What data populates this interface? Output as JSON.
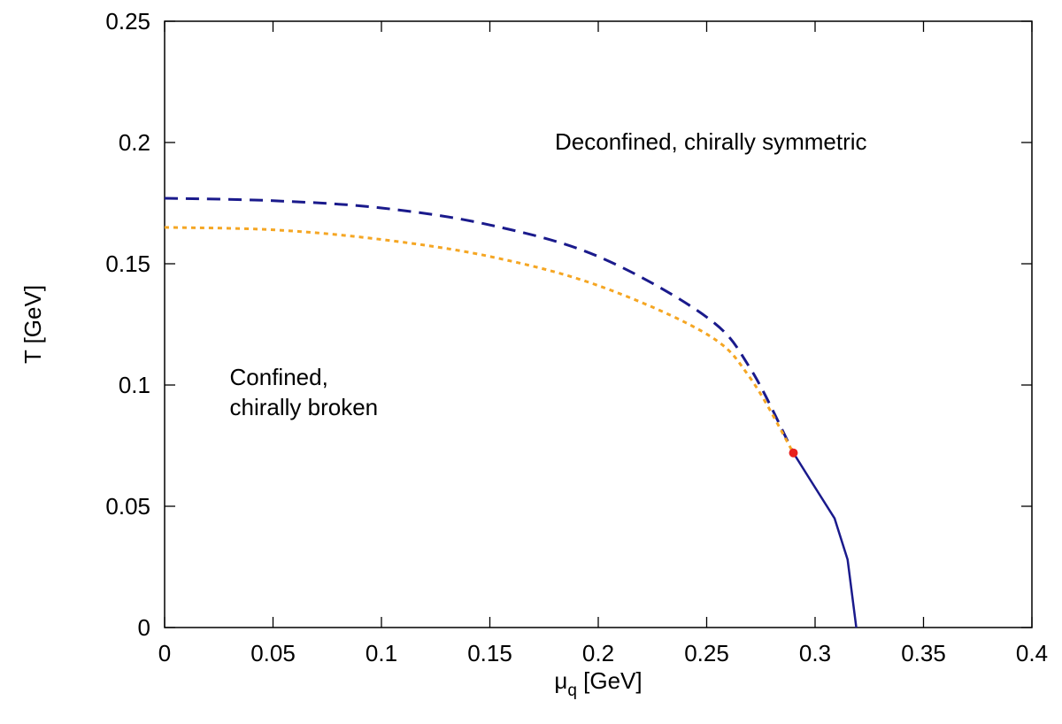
{
  "chart_data": {
    "type": "line",
    "xlabel_symbol": "μ",
    "xlabel_subscript": "q",
    "xlabel_unit": " [GeV]",
    "ylabel": "T [GeV]",
    "xlim": [
      0,
      0.4
    ],
    "ylim": [
      0,
      0.25
    ],
    "x_ticks": [
      "0",
      "0.05",
      "0.1",
      "0.15",
      "0.2",
      "0.25",
      "0.3",
      "0.35",
      "0.4"
    ],
    "y_ticks": [
      "0",
      "0.05",
      "0.1",
      "0.15",
      "0.2",
      "0.25"
    ],
    "grid": false,
    "annotations": [
      {
        "lines": [
          "Deconfined, chirally symmetric"
        ],
        "x": 0.18,
        "y": 0.197
      },
      {
        "lines": [
          "Confined,",
          "chirally broken"
        ],
        "x": 0.03,
        "y": 0.1
      }
    ],
    "series": [
      {
        "style": "dashed",
        "color": "#1a1a8c",
        "points": [
          [
            0,
            0.177
          ],
          [
            0.05,
            0.176
          ],
          [
            0.1,
            0.173
          ],
          [
            0.15,
            0.166
          ],
          [
            0.2,
            0.153
          ],
          [
            0.25,
            0.128
          ],
          [
            0.27,
            0.107
          ],
          [
            0.29,
            0.072
          ]
        ]
      },
      {
        "style": "dotted",
        "color": "#f5a623",
        "points": [
          [
            0,
            0.165
          ],
          [
            0.05,
            0.164
          ],
          [
            0.1,
            0.16
          ],
          [
            0.15,
            0.153
          ],
          [
            0.2,
            0.141
          ],
          [
            0.25,
            0.121
          ],
          [
            0.27,
            0.103
          ],
          [
            0.29,
            0.072
          ]
        ]
      },
      {
        "style": "solid",
        "color": "#1a1a8c",
        "points": [
          [
            0.29,
            0.072
          ],
          [
            0.297,
            0.062
          ],
          [
            0.309,
            0.045
          ],
          [
            0.315,
            0.028
          ],
          [
            0.319,
            0.0
          ]
        ]
      }
    ],
    "critical_point": {
      "x": 0.29,
      "y": 0.072,
      "color": "#e8201e"
    }
  }
}
